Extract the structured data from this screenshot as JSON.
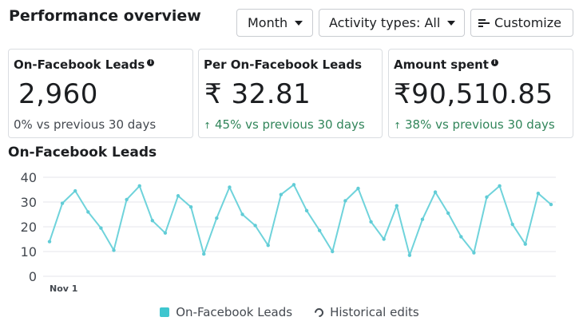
{
  "header": {
    "title": "Performance overview",
    "month_label": "Month",
    "activity_label": "Activity types: All",
    "customize_label": "Customize"
  },
  "cards": [
    {
      "title": "On-Facebook Leads",
      "value": "2,960",
      "change": "0% vs previous 30 days"
    },
    {
      "title": "Per On-Facebook Leads",
      "value": "₹ 32.81",
      "arrow": "↑",
      "change": " 45% vs previous 30 days"
    },
    {
      "title": "Amount spent",
      "value": "₹90,510.85",
      "arrow": "↑",
      "change": " 38%  vs previous 30 days"
    }
  ],
  "colors": {
    "series": "#6fd3db",
    "series_point": "#61ccd6",
    "legend_swatch": "#3ec6cf",
    "positive": "#31855a",
    "grid": "#e4e6eb"
  },
  "chart_data": {
    "type": "line",
    "title": "On-Facebook Leads",
    "x_tick_labels": [
      {
        "index": 0,
        "label": "Nov 1"
      }
    ],
    "yticks": [
      0,
      10,
      20,
      30,
      40
    ],
    "ylim": [
      0,
      40
    ],
    "grid": true,
    "legend_position": "bottom",
    "series": [
      {
        "name": "On-Facebook Leads",
        "values": [
          14,
          29.5,
          34.5,
          26,
          19.5,
          10.5,
          31,
          36.5,
          22.5,
          17.5,
          32.5,
          28,
          9,
          23.5,
          36,
          25,
          20.5,
          12.5,
          33,
          37,
          26.5,
          18.5,
          10,
          30.5,
          35.5,
          22,
          15,
          28.5,
          8.5,
          23,
          34,
          25.5,
          16,
          9.5,
          32,
          36.5,
          21,
          13,
          33.5,
          29
        ]
      }
    ],
    "legend": [
      "On-Facebook Leads",
      "Historical edits"
    ]
  }
}
